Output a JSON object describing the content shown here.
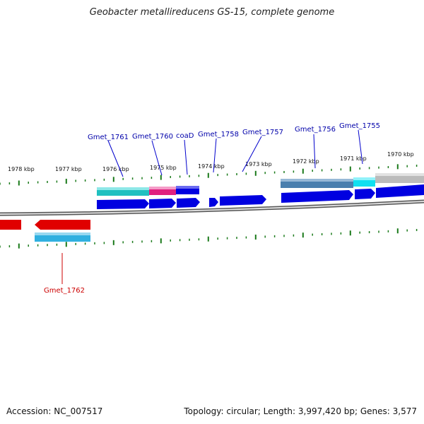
{
  "title": "Geobacter metallireducens GS-15, complete genome",
  "footer": {
    "accession": "Accession: NC_007517",
    "summary": "Topology: circular; Length: 3,997,420 bp; Genes: 3,577"
  },
  "scale_labels": [
    "1978 kbp",
    "1977 kbp",
    "1976 kbp",
    "1975 kbp",
    "1974 kbp",
    "1973 kbp",
    "1972 kbp",
    "1971 kbp",
    "1970 kbp"
  ],
  "gene_labels_forward": [
    "Gmet_1761",
    "Gmet_1760",
    "coaD",
    "Gmet_1758",
    "Gmet_1757",
    "Gmet_1756",
    "Gmet_1755"
  ],
  "gene_labels_reverse": [
    "Gmet_1762"
  ],
  "colors": {
    "forward_gene": "#0000e0",
    "reverse_gene": "#e00000",
    "forward_label": "#0000aa",
    "reverse_label": "#cc0000",
    "tick": "#1a7a1a",
    "backbone": "#777777",
    "teal_domain": "#20c0c0",
    "magenta_domain": "#e0207f",
    "steel_domain": "#4a7fae",
    "cyan_domain": "#10e0f0",
    "grey_domain": "#bbbbbb",
    "light_blue_domain": "#30b0e0"
  }
}
